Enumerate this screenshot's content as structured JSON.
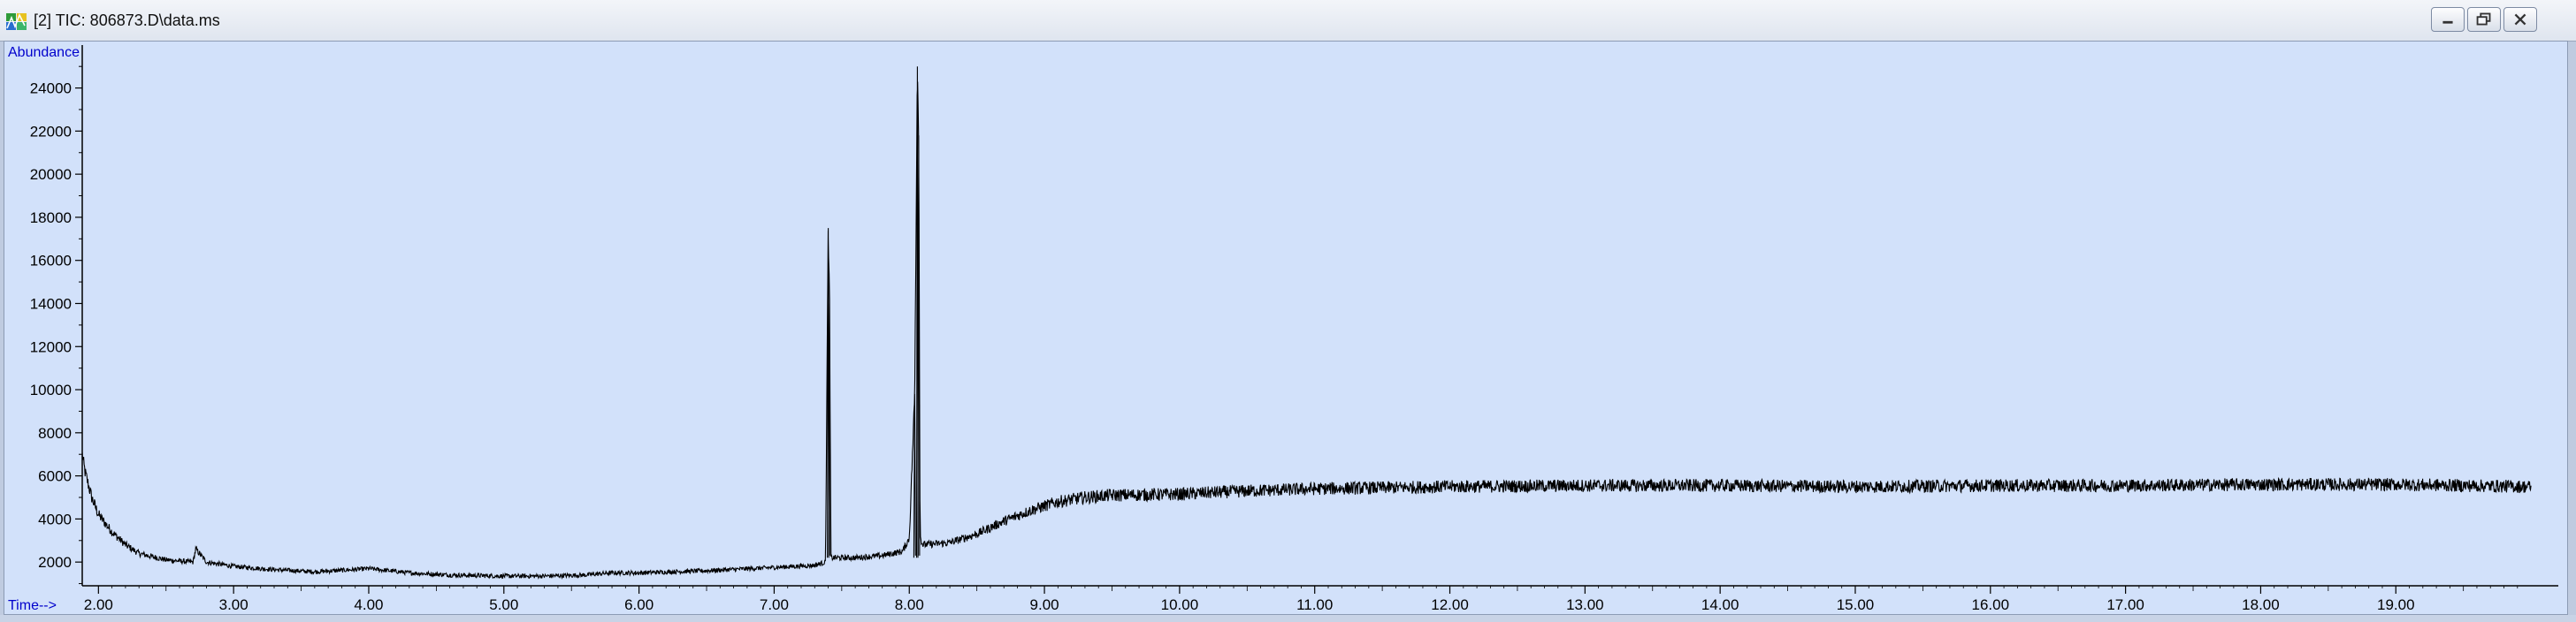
{
  "window": {
    "title": "[2] TIC: 806873.D\\data.ms",
    "icon": "chromatogram-app-icon",
    "controls": [
      "minimize",
      "restore",
      "close"
    ]
  },
  "chart_data": {
    "type": "line",
    "xlabel": "Time-->",
    "ylabel": "Abundance",
    "xlim": [
      1.88,
      20.15
    ],
    "ylim": [
      900,
      25500
    ],
    "x_ticks": [
      2.0,
      3.0,
      4.0,
      5.0,
      6.0,
      7.0,
      8.0,
      9.0,
      10.0,
      11.0,
      12.0,
      13.0,
      14.0,
      15.0,
      16.0,
      17.0,
      18.0,
      19.0
    ],
    "x_tick_labels": [
      "2.00",
      "3.00",
      "4.00",
      "5.00",
      "6.00",
      "7.00",
      "8.00",
      "9.00",
      "10.00",
      "11.00",
      "12.00",
      "13.00",
      "14.00",
      "15.00",
      "16.00",
      "17.00",
      "18.00",
      "19.00"
    ],
    "y_ticks": [
      2000,
      4000,
      6000,
      8000,
      10000,
      12000,
      14000,
      16000,
      18000,
      20000,
      22000,
      24000
    ],
    "y_tick_labels": [
      "2000",
      "4000",
      "6000",
      "8000",
      "10000",
      "12000",
      "14000",
      "16000",
      "18000",
      "20000",
      "22000",
      "24000"
    ],
    "line_color": "#000000",
    "background_color": "#d2e1fa",
    "label_color": "#0000cc",
    "grid": false,
    "series": [
      {
        "x": [
          1.88,
          1.9,
          1.95,
          2.0,
          2.1,
          2.2,
          2.3,
          2.5,
          2.7,
          2.72,
          2.8,
          3.0,
          3.3,
          3.6,
          3.9,
          4.0,
          4.3,
          4.6,
          5.0,
          5.3,
          5.6,
          5.8,
          6.0,
          6.5,
          7.0,
          7.3,
          7.38,
          7.4,
          7.41,
          7.42,
          7.45,
          7.6,
          7.8,
          7.95,
          8.0,
          8.04,
          8.06,
          8.07,
          8.08,
          8.1,
          8.3,
          8.5,
          8.7,
          8.9,
          9.1,
          9.3,
          9.5,
          10.0,
          10.5,
          11.0,
          11.5,
          12.0,
          13.0,
          14.0,
          15.0,
          16.0,
          17.0,
          18.0,
          19.0,
          20.0
        ],
        "y": [
          7000,
          6200,
          5000,
          4200,
          3400,
          2800,
          2400,
          2100,
          2000,
          2600,
          2000,
          1800,
          1650,
          1550,
          1650,
          1700,
          1500,
          1400,
          1350,
          1350,
          1400,
          1500,
          1500,
          1600,
          1750,
          1850,
          2000,
          17500,
          14000,
          2200,
          2200,
          2200,
          2300,
          2500,
          3100,
          9800,
          25000,
          21800,
          3200,
          2800,
          2900,
          3300,
          3900,
          4400,
          4800,
          5000,
          5100,
          5150,
          5300,
          5400,
          5450,
          5500,
          5550,
          5550,
          5500,
          5550,
          5550,
          5600,
          5600,
          5500
        ],
        "noise": 300
      }
    ]
  }
}
